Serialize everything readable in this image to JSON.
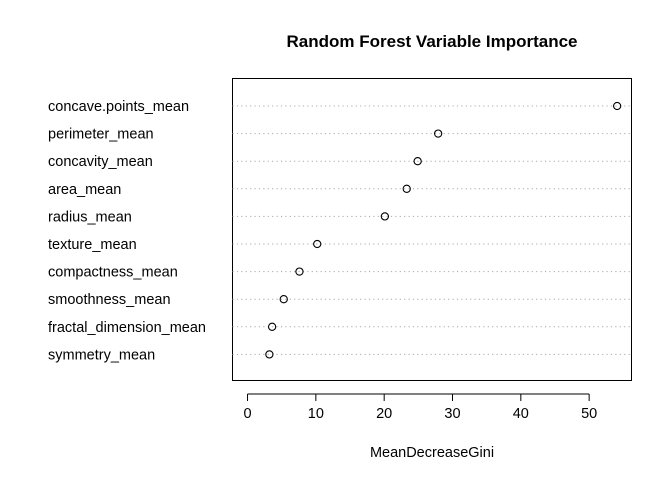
{
  "chart_data": {
    "type": "scatter",
    "title": "Random Forest Variable Importance",
    "xlabel": "MeanDecreaseGini",
    "ylabel": "",
    "xlim": [
      -2.2,
      56.2
    ],
    "xticks": [
      0,
      10,
      20,
      30,
      40,
      50
    ],
    "categories": [
      "concave.points_mean",
      "perimeter_mean",
      "concavity_mean",
      "area_mean",
      "radius_mean",
      "texture_mean",
      "compactness_mean",
      "smoothness_mean",
      "fractal_dimension_mean",
      "symmetry_mean"
    ],
    "values": [
      54.1,
      27.9,
      24.9,
      23.3,
      20.1,
      10.2,
      7.6,
      5.3,
      3.6,
      3.2
    ],
    "grid": "horizontal-dotted",
    "colors": {
      "point": "#000000",
      "guide": "#a8a8a8"
    }
  }
}
